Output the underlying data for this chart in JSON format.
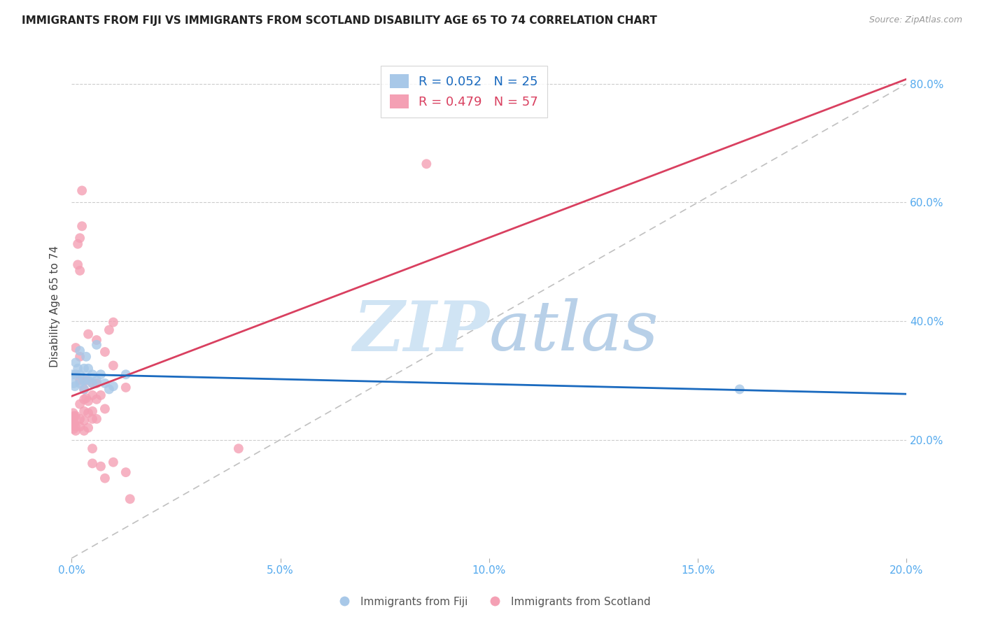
{
  "title": "IMMIGRANTS FROM FIJI VS IMMIGRANTS FROM SCOTLAND DISABILITY AGE 65 TO 74 CORRELATION CHART",
  "source": "Source: ZipAtlas.com",
  "ylabel": "Disability Age 65 to 74",
  "fiji_R": 0.052,
  "fiji_N": 25,
  "scotland_R": 0.479,
  "scotland_N": 57,
  "xlim": [
    0.0,
    0.2
  ],
  "ylim": [
    0.0,
    0.85
  ],
  "yticks": [
    0.2,
    0.4,
    0.6,
    0.8
  ],
  "xticks": [
    0.0,
    0.05,
    0.1,
    0.15,
    0.2
  ],
  "fiji_color": "#a8c8e8",
  "scotland_color": "#f4a0b4",
  "fiji_line_color": "#1a6abf",
  "scotland_line_color": "#d94060",
  "diagonal_color": "#c0c0c0",
  "watermark_text": "ZIPatlas",
  "watermark_color": "#d0e4f4",
  "fiji_scatter": [
    [
      0.0002,
      0.31
    ],
    [
      0.0005,
      0.295
    ],
    [
      0.0008,
      0.29
    ],
    [
      0.001,
      0.33
    ],
    [
      0.001,
      0.31
    ],
    [
      0.0015,
      0.32
    ],
    [
      0.002,
      0.35
    ],
    [
      0.002,
      0.31
    ],
    [
      0.002,
      0.295
    ],
    [
      0.003,
      0.32
    ],
    [
      0.003,
      0.3
    ],
    [
      0.003,
      0.285
    ],
    [
      0.0035,
      0.34
    ],
    [
      0.004,
      0.32
    ],
    [
      0.004,
      0.3
    ],
    [
      0.005,
      0.31
    ],
    [
      0.005,
      0.295
    ],
    [
      0.006,
      0.36
    ],
    [
      0.006,
      0.3
    ],
    [
      0.007,
      0.31
    ],
    [
      0.008,
      0.295
    ],
    [
      0.009,
      0.285
    ],
    [
      0.01,
      0.29
    ],
    [
      0.013,
      0.31
    ],
    [
      0.16,
      0.285
    ]
  ],
  "scotland_scatter": [
    [
      0.0001,
      0.235
    ],
    [
      0.0002,
      0.225
    ],
    [
      0.0003,
      0.23
    ],
    [
      0.0004,
      0.245
    ],
    [
      0.0005,
      0.218
    ],
    [
      0.0006,
      0.24
    ],
    [
      0.0007,
      0.228
    ],
    [
      0.001,
      0.355
    ],
    [
      0.001,
      0.24
    ],
    [
      0.001,
      0.222
    ],
    [
      0.001,
      0.215
    ],
    [
      0.0015,
      0.53
    ],
    [
      0.0015,
      0.495
    ],
    [
      0.002,
      0.54
    ],
    [
      0.002,
      0.485
    ],
    [
      0.002,
      0.34
    ],
    [
      0.002,
      0.3
    ],
    [
      0.002,
      0.26
    ],
    [
      0.002,
      0.235
    ],
    [
      0.002,
      0.222
    ],
    [
      0.0025,
      0.62
    ],
    [
      0.0025,
      0.56
    ],
    [
      0.003,
      0.285
    ],
    [
      0.003,
      0.268
    ],
    [
      0.003,
      0.248
    ],
    [
      0.003,
      0.232
    ],
    [
      0.003,
      0.215
    ],
    [
      0.0035,
      0.3
    ],
    [
      0.0035,
      0.27
    ],
    [
      0.004,
      0.378
    ],
    [
      0.004,
      0.265
    ],
    [
      0.004,
      0.245
    ],
    [
      0.004,
      0.22
    ],
    [
      0.005,
      0.295
    ],
    [
      0.005,
      0.275
    ],
    [
      0.005,
      0.248
    ],
    [
      0.005,
      0.235
    ],
    [
      0.005,
      0.185
    ],
    [
      0.005,
      0.16
    ],
    [
      0.006,
      0.368
    ],
    [
      0.006,
      0.295
    ],
    [
      0.006,
      0.268
    ],
    [
      0.006,
      0.235
    ],
    [
      0.007,
      0.275
    ],
    [
      0.007,
      0.155
    ],
    [
      0.008,
      0.348
    ],
    [
      0.008,
      0.252
    ],
    [
      0.008,
      0.135
    ],
    [
      0.009,
      0.385
    ],
    [
      0.01,
      0.398
    ],
    [
      0.01,
      0.325
    ],
    [
      0.01,
      0.162
    ],
    [
      0.013,
      0.288
    ],
    [
      0.013,
      0.145
    ],
    [
      0.014,
      0.1
    ],
    [
      0.04,
      0.185
    ],
    [
      0.085,
      0.665
    ]
  ]
}
